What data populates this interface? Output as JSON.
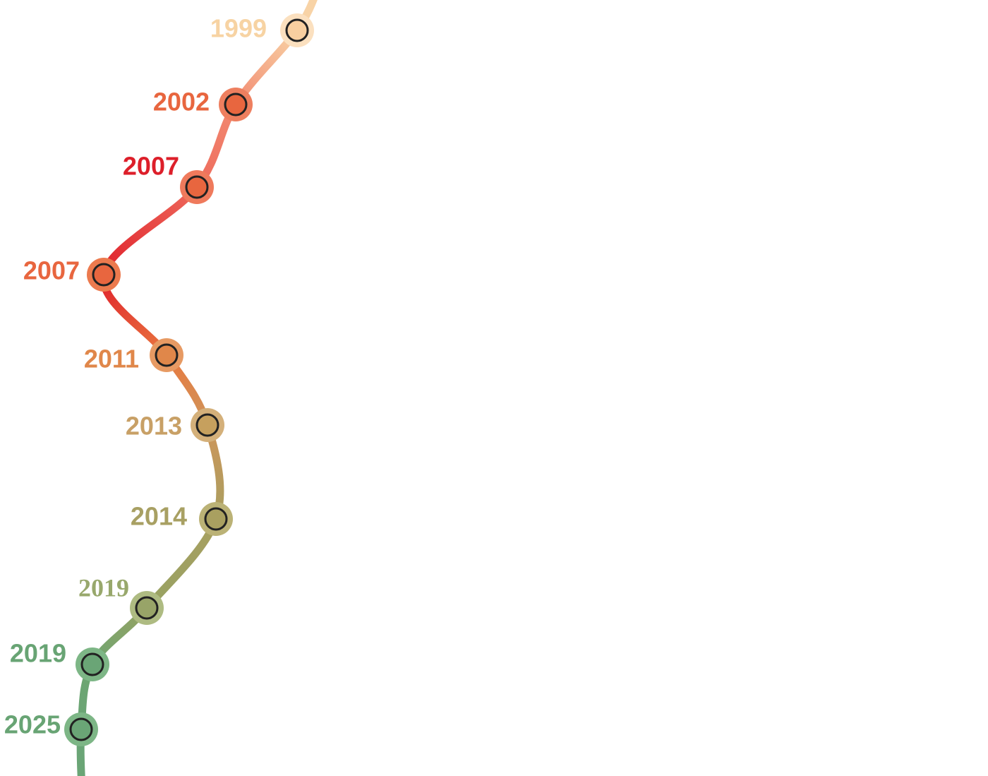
{
  "timeline": {
    "nodes": [
      {
        "label": "1999"
      },
      {
        "label": "2002"
      },
      {
        "label": "2007"
      },
      {
        "label": "2007"
      },
      {
        "label": "2011"
      },
      {
        "label": "2013"
      },
      {
        "label": "2014"
      },
      {
        "label": "2019"
      },
      {
        "label": "2019"
      },
      {
        "label": "2025"
      }
    ]
  }
}
